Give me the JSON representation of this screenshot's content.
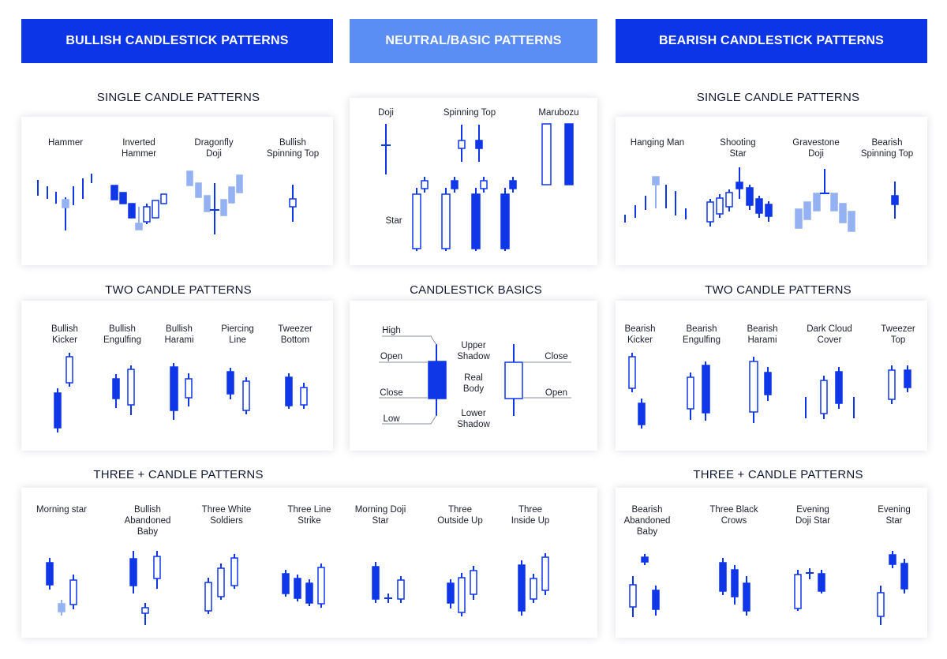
{
  "colors": {
    "blue": "#0f37e8",
    "light_blue": "#94b1f2",
    "header_dark": "#0c35e8",
    "header_light": "#5b8ef5"
  },
  "headers": {
    "bullish": "BULLISH CANDLESTICK PATTERNS",
    "neutral": "NEUTRAL/BASIC PATTERNS",
    "bearish": "BEARISH CANDLESTICK PATTERNS"
  },
  "sections": {
    "bull_single": "SINGLE CANDLE PATTERNS",
    "bull_two": "TWO CANDLE PATTERNS",
    "bull_three": "THREE + CANDLE PATTERNS",
    "basics": "CANDLESTICK BASICS",
    "bear_single": "SINGLE CANDLE PATTERNS",
    "bear_two": "TWO CANDLE PATTERNS",
    "bear_three": "THREE + CANDLE PATTERNS"
  },
  "bull_single": [
    "Hammer",
    "Inverted\nHammer",
    "Dragonfly\nDoji",
    "Bullish\nSpinning Top"
  ],
  "neutral": [
    "Doji",
    "Spinning Top",
    "Marubozu",
    "Star"
  ],
  "bear_single": [
    "Hanging Man",
    "Shooting\nStar",
    "Gravestone\nDoji",
    "Bearish\nSpinning Top"
  ],
  "bull_two": [
    "Bullish\nKicker",
    "Bullish\nEngulfing",
    "Bullish\nHarami",
    "Piercing\nLine",
    "Tweezer\nBottom"
  ],
  "basics": [
    "High",
    "Open",
    "Close",
    "Low",
    "Upper\nShadow",
    "Real\nBody",
    "Lower\nShadow",
    "Close",
    "Open"
  ],
  "bear_two": [
    "Bearish\nKicker",
    "Bearish\nEngulfing",
    "Bearish\nHarami",
    "Dark Cloud\nCover",
    "Tweezer\nTop"
  ],
  "bull_three": [
    "Morning star",
    "Bullish\nAbandoned\nBaby",
    "Three White\nSoldiers",
    "Three Line\nStrike",
    "Morning Doji\nStar",
    "Three\nOutside Up",
    "Three\nInside Up"
  ],
  "bear_three": [
    "Bearish\nAbandoned\nBaby",
    "Three Black\nCrows",
    "Evening\nDoji Star",
    "Evening\nStar"
  ]
}
